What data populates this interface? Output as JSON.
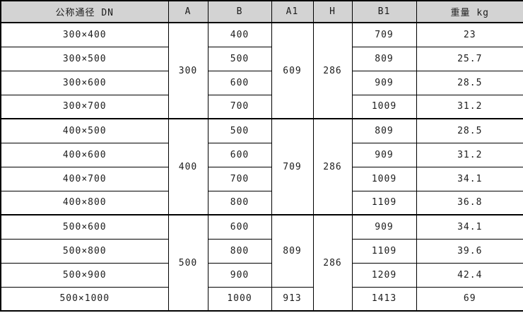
{
  "table": {
    "headers": [
      "公称通径 DN",
      "A",
      "B",
      "A1",
      "H",
      "B1",
      "重量 kg"
    ],
    "groups": [
      {
        "a": "300",
        "a1": "609",
        "h": "286",
        "rows": [
          {
            "dn": "300×400",
            "b": "400",
            "b1": "709",
            "weight": "23"
          },
          {
            "dn": "300×500",
            "b": "500",
            "b1": "809",
            "weight": "25.7"
          },
          {
            "dn": "300×600",
            "b": "600",
            "b1": "909",
            "weight": "28.5"
          },
          {
            "dn": "300×700",
            "b": "700",
            "b1": "1009",
            "weight": "31.2"
          }
        ]
      },
      {
        "a": "400",
        "a1": "709",
        "h": "286",
        "rows": [
          {
            "dn": "400×500",
            "b": "500",
            "b1": "809",
            "weight": "28.5"
          },
          {
            "dn": "400×600",
            "b": "600",
            "b1": "909",
            "weight": "31.2"
          },
          {
            "dn": "400×700",
            "b": "700",
            "b1": "1009",
            "weight": "34.1"
          },
          {
            "dn": "400×800",
            "b": "800",
            "b1": "1109",
            "weight": "36.8"
          }
        ]
      },
      {
        "a": "500",
        "a1_top": "809",
        "a1_bottom": "913",
        "h": "286",
        "rows": [
          {
            "dn": "500×600",
            "b": "600",
            "b1": "909",
            "weight": "34.1"
          },
          {
            "dn": "500×800",
            "b": "800",
            "b1": "1109",
            "weight": "39.6"
          },
          {
            "dn": "500×900",
            "b": "900",
            "b1": "1209",
            "weight": "42.4"
          },
          {
            "dn": "500×1000",
            "b": "1000",
            "b1": "1413",
            "weight": "69"
          }
        ]
      }
    ],
    "colors": {
      "header_bg": "#d3d3d3",
      "border": "#000000",
      "row_bg": "#ffffff"
    }
  }
}
